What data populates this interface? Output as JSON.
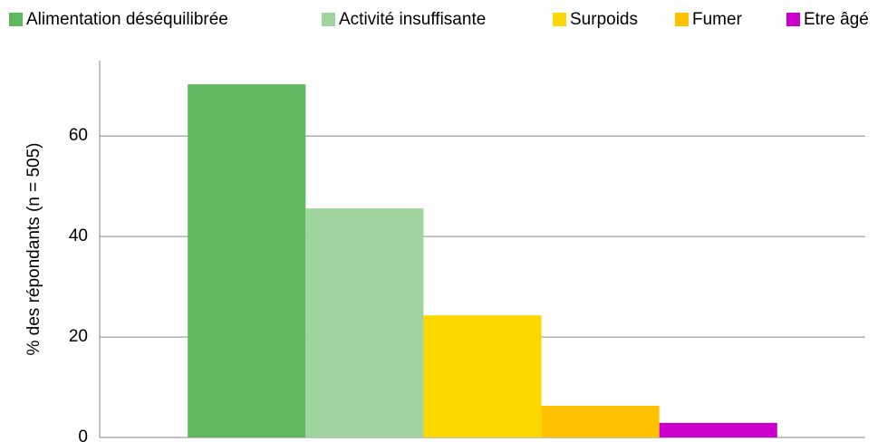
{
  "chart_data": {
    "type": "bar",
    "y_label": "% des répondants (n = 505)",
    "categories": [
      null
    ],
    "series": [
      {
        "name": "Alimentation déséquilibrée",
        "color": "#5fb760",
        "values": [
          70.3
        ]
      },
      {
        "name": "Activité insuffisante",
        "color": "#9fd49f",
        "values": [
          45.6
        ]
      },
      {
        "name": "Surpoids",
        "color": "#fcd800",
        "values": [
          24.3
        ]
      },
      {
        "name": "Fumer",
        "color": "#ffc000",
        "values": [
          6.3
        ]
      },
      {
        "name": "Etre âgé",
        "color": "#cc00cc",
        "values": [
          2.9
        ]
      }
    ],
    "ylim": [
      0,
      75
    ],
    "yticks": [
      0,
      20,
      40,
      60
    ],
    "grid": true,
    "legend": "top"
  }
}
